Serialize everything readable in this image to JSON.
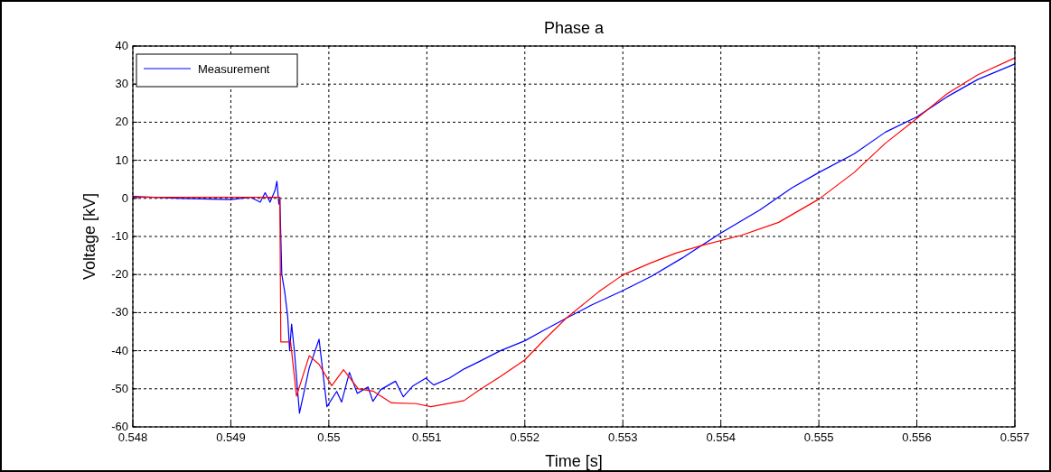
{
  "chart_data": {
    "type": "line",
    "title": "Phase a",
    "xlabel": "Time [s]",
    "ylabel": "Voltage [kV]",
    "xlim": [
      0.548,
      0.557
    ],
    "xticks": [
      0.548,
      0.549,
      0.55,
      0.551,
      0.552,
      0.553,
      0.554,
      0.555,
      0.556,
      0.557
    ],
    "ylim": [
      -60,
      40
    ],
    "yticks": [
      -60,
      -50,
      -40,
      -30,
      -20,
      -10,
      0,
      10,
      20,
      30,
      40
    ],
    "grid": true,
    "legend": "top left",
    "line_style": "solid",
    "marker": "none",
    "series": [
      {
        "name": "Measurement",
        "color": "#0000ff",
        "x": [
          0.548,
          0.5485,
          0.549,
          0.5492,
          0.5493,
          0.54935,
          0.5494,
          0.54945,
          0.54947,
          0.54949,
          0.5495,
          0.54952,
          0.54955,
          0.54958,
          0.5496,
          0.54962,
          0.54965,
          0.5497,
          0.5498,
          0.5499,
          0.54998,
          0.55008,
          0.55013,
          0.55021,
          0.55029,
          0.5504,
          0.55045,
          0.55053,
          0.55068,
          0.55076,
          0.55086,
          0.55099,
          0.55107,
          0.55123,
          0.55138,
          0.55153,
          0.55175,
          0.552,
          0.55218,
          0.55242,
          0.55269,
          0.553,
          0.55329,
          0.55361,
          0.554,
          0.5544,
          0.55472,
          0.555,
          0.55536,
          0.55568,
          0.556,
          0.55631,
          0.55662,
          0.557
        ],
        "values": [
          0.5,
          0,
          -0.3,
          0.3,
          -1,
          1.5,
          -1,
          2,
          4.5,
          -1.5,
          0,
          -20,
          -24.6,
          -31,
          -40,
          -33,
          -40.5,
          -56.4,
          -44.5,
          -37,
          -54.7,
          -50.7,
          -53.5,
          -45.7,
          -51.2,
          -49.5,
          -53.3,
          -50.2,
          -48,
          -52.1,
          -49.2,
          -47.2,
          -49,
          -47.2,
          -44.8,
          -42.9,
          -40,
          -37.4,
          -34.8,
          -31.5,
          -27.9,
          -24.2,
          -20.5,
          -15.6,
          -9.1,
          -3,
          2.7,
          6.8,
          11.7,
          17.4,
          21.4,
          26.7,
          31.2,
          35.3
        ]
      },
      {
        "color": "#ff0000",
        "x": [
          0.548,
          0.549,
          0.5495,
          0.54951,
          0.54961,
          0.54967,
          0.5498,
          0.5499,
          0.55003,
          0.55015,
          0.5503,
          0.55045,
          0.55064,
          0.55089,
          0.55104,
          0.55138,
          0.55153,
          0.55175,
          0.552,
          0.55218,
          0.55242,
          0.55275,
          0.553,
          0.55329,
          0.55355,
          0.5538,
          0.55421,
          0.55459,
          0.555,
          0.55536,
          0.55568,
          0.556,
          0.55631,
          0.55662,
          0.557
        ],
        "values": [
          0.3,
          0.3,
          0.3,
          -37.7,
          -37.7,
          -51.9,
          -41.3,
          -43.6,
          -49.2,
          -45,
          -50,
          -50.6,
          -53.7,
          -53.9,
          -54.7,
          -53.1,
          -50.4,
          -46.8,
          -42.4,
          -37.6,
          -31.5,
          -24.6,
          -20.1,
          -16.9,
          -14.3,
          -12.4,
          -9.7,
          -6.3,
          -0.2,
          6.8,
          14.5,
          21,
          27.5,
          32.4,
          36.9
        ]
      }
    ]
  }
}
